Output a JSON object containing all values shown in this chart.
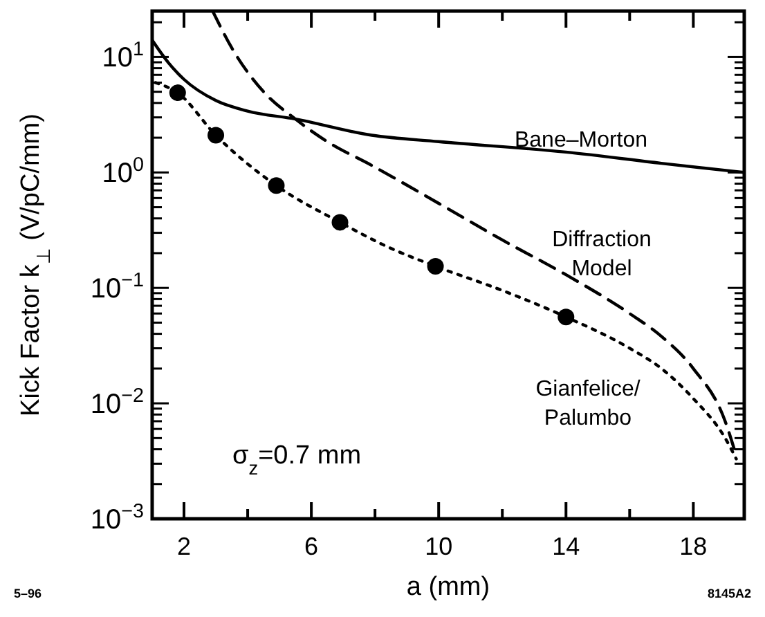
{
  "chart_data": {
    "type": "line",
    "xlabel": "a  (mm)",
    "ylabel": "Kick Factor k$_{⊥}$  (V/pC/mm)",
    "log": "y",
    "grid": false,
    "xlim": [
      1,
      19.6
    ],
    "ylim": [
      0.001,
      25
    ],
    "xticks": [
      2,
      {
        "value": 4,
        "label": null
      },
      6,
      {
        "value": 8,
        "label": null
      },
      10,
      {
        "value": 12,
        "label": null
      },
      14,
      {
        "value": 16,
        "label": null
      },
      18
    ],
    "yticks": [
      {
        "value": 0.001,
        "label": "10$^{−3}$"
      },
      {
        "value": 0.002,
        "label": null
      },
      {
        "value": 0.003,
        "label": null
      },
      {
        "value": 0.004,
        "label": null
      },
      {
        "value": 0.005,
        "label": null
      },
      {
        "value": 0.006,
        "label": null
      },
      {
        "value": 0.007,
        "label": null
      },
      {
        "value": 0.008,
        "label": null
      },
      {
        "value": 0.009,
        "label": null
      },
      {
        "value": 0.01,
        "label": "10$^{−2}$"
      },
      {
        "value": 0.02,
        "label": null
      },
      {
        "value": 0.03,
        "label": null
      },
      {
        "value": 0.04,
        "label": null
      },
      {
        "value": 0.05,
        "label": null
      },
      {
        "value": 0.06,
        "label": null
      },
      {
        "value": 0.07,
        "label": null
      },
      {
        "value": 0.08,
        "label": null
      },
      {
        "value": 0.09,
        "label": null
      },
      {
        "value": 0.1,
        "label": "10$^{−1}$"
      },
      {
        "value": 0.2,
        "label": null
      },
      {
        "value": 0.3,
        "label": null
      },
      {
        "value": 0.4,
        "label": null
      },
      {
        "value": 0.5,
        "label": null
      },
      {
        "value": 0.6,
        "label": null
      },
      {
        "value": 0.7,
        "label": null
      },
      {
        "value": 0.8,
        "label": null
      },
      {
        "value": 0.9,
        "label": null
      },
      {
        "value": 1,
        "label": "10$^{0}$"
      },
      {
        "value": 2,
        "label": null
      },
      {
        "value": 3,
        "label": null
      },
      {
        "value": 4,
        "label": null
      },
      {
        "value": 5,
        "label": null
      },
      {
        "value": 6,
        "label": null
      },
      {
        "value": 7,
        "label": null
      },
      {
        "value": 8,
        "label": null
      },
      {
        "value": 9,
        "label": null
      },
      {
        "value": 10,
        "label": "10$^{1}$"
      },
      {
        "value": 20,
        "label": null
      }
    ],
    "series": [
      {
        "name": "Bane–Morton",
        "color": "#000000",
        "line_style": "solid",
        "x": [
          1.0,
          1.5,
          2,
          3,
          4,
          5.5,
          7.9,
          10,
          14,
          17,
          19.6
        ],
        "values": [
          14,
          9,
          6.4,
          4.2,
          3.4,
          2.9,
          2.1,
          1.85,
          1.5,
          1.2,
          1.0
        ]
      },
      {
        "name": "Diffraction Model",
        "color": "#000000",
        "line_style": "dashed",
        "x": [
          2.9,
          3.5,
          4.5,
          5.5,
          6.5,
          7.9,
          10,
          12,
          14,
          16,
          17,
          18,
          19,
          19.35
        ],
        "values": [
          25,
          12,
          5,
          2.9,
          1.85,
          1.15,
          0.54,
          0.26,
          0.13,
          0.06,
          0.038,
          0.02,
          0.007,
          0.0035
        ]
      },
      {
        "name": "Gianfelice/Palumbo",
        "color": "#000000",
        "line_style": "dotted",
        "x": [
          1.1,
          1.8,
          3,
          4.9,
          6.9,
          8.5,
          9.9,
          12,
          14,
          16,
          17,
          18,
          19,
          19.35
        ],
        "values": [
          6,
          4.9,
          2.1,
          0.77,
          0.37,
          0.22,
          0.154,
          0.095,
          0.056,
          0.03,
          0.02,
          0.011,
          0.005,
          0.0033
        ]
      },
      {
        "type": "scatter",
        "color": "#000000",
        "marker": "circle",
        "x": [
          1.8,
          3,
          4.9,
          6.9,
          9.9,
          14
        ],
        "values": [
          4.9,
          2.1,
          0.77,
          0.37,
          0.154,
          0.056
        ]
      }
    ],
    "annotations": [
      "σ$_{z}$=0.7 mm",
      "5–96",
      "8145A2"
    ]
  }
}
